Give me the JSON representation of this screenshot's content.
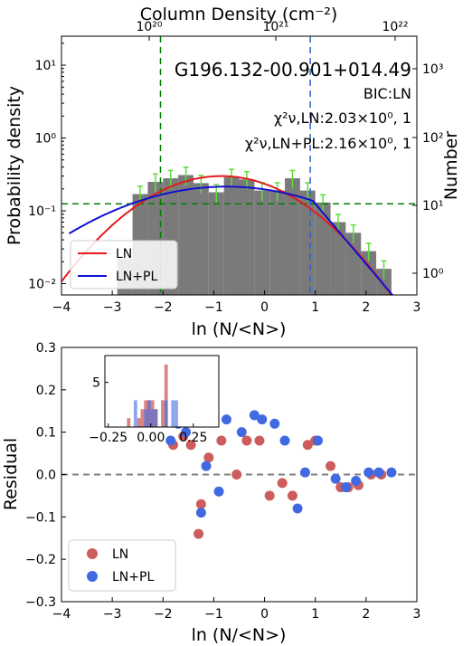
{
  "chart_data": [
    {
      "type": "bar",
      "title": "G196.132-00.901+014.49",
      "annotations": [
        "BIC:LN",
        "χ²ν,LN:2.03×10⁰, 1",
        "χ²ν,LN+PL:2.16×10⁰, 1"
      ],
      "xlabel": "ln (N/<N>)",
      "ylabel": "Probability density",
      "ylabel_right": "Number",
      "xlabel_top": "Column Density (cm⁻²)",
      "xlim": [
        -4,
        3
      ],
      "ylim": [
        0.007,
        25
      ],
      "yscale": "log",
      "x_ticks": [
        "−4",
        "−3",
        "−2",
        "−1",
        "0",
        "1",
        "2",
        "3"
      ],
      "y_ticks": [
        "10⁻²",
        "10⁻¹",
        "10⁰",
        "10¹"
      ],
      "y_right_ticks": [
        "10⁰",
        "10¹",
        "10²",
        "10³"
      ],
      "top_ticks": [
        "10²⁰",
        "10²¹",
        "10²²"
      ],
      "histogram": {
        "color": "#7a7a7a",
        "bins": [
          {
            "x0": -2.9,
            "x1": -2.6,
            "value": 0.022
          },
          {
            "x0": -2.6,
            "x1": -2.3,
            "value": 0.17
          },
          {
            "x0": -2.3,
            "x1": -2.0,
            "value": 0.25
          },
          {
            "x0": -2.0,
            "x1": -1.7,
            "value": 0.28
          },
          {
            "x0": -1.7,
            "x1": -1.4,
            "value": 0.31
          },
          {
            "x0": -1.4,
            "x1": -1.1,
            "value": 0.24
          },
          {
            "x0": -1.1,
            "x1": -0.8,
            "value": 0.18
          },
          {
            "x0": -0.8,
            "x1": -0.5,
            "value": 0.29
          },
          {
            "x0": -0.5,
            "x1": -0.2,
            "value": 0.27
          },
          {
            "x0": -0.2,
            "x1": 0.1,
            "value": 0.19
          },
          {
            "x0": 0.1,
            "x1": 0.4,
            "value": 0.19
          },
          {
            "x0": 0.4,
            "x1": 0.7,
            "value": 0.28
          },
          {
            "x0": 0.7,
            "x1": 1.0,
            "value": 0.19
          },
          {
            "x0": 1.0,
            "x1": 1.3,
            "value": 0.13
          },
          {
            "x0": 1.3,
            "x1": 1.6,
            "value": 0.07
          },
          {
            "x0": 1.6,
            "x1": 1.9,
            "value": 0.05
          },
          {
            "x0": 1.9,
            "x1": 2.2,
            "value": 0.028
          },
          {
            "x0": 2.2,
            "x1": 2.5,
            "value": 0.016
          }
        ]
      },
      "series": [
        {
          "name": "LN",
          "color": "#e41a1c",
          "mu": -0.85,
          "sigma": 1.22,
          "amp": 0.3
        },
        {
          "name": "LN+PL",
          "color": "#1010d0",
          "mu": -0.75,
          "sigma": 1.8,
          "amp": 0.215,
          "pl_start": 0.95,
          "pl_slope": -1.9
        }
      ],
      "hlines": [
        {
          "y": 0.125,
          "color": "#008000",
          "style": "dashed"
        }
      ],
      "vlines": [
        {
          "x": -2.05,
          "color": "#008000",
          "style": "dashed"
        },
        {
          "x": 0.9,
          "color": "#3060d0",
          "style": "dashed"
        }
      ],
      "legend": "lower-left"
    },
    {
      "type": "scatter",
      "xlabel": "ln (N/<N>)",
      "ylabel": "Residual",
      "xlim": [
        -4,
        3
      ],
      "ylim": [
        -0.3,
        0.3
      ],
      "x_ticks": [
        "−4",
        "−3",
        "−2",
        "−1",
        "0",
        "1",
        "2",
        "3"
      ],
      "y_ticks": [
        "−0.3",
        "−0.2",
        "−0.1",
        "0.0",
        "0.1",
        "0.2",
        "0.3"
      ],
      "hline": {
        "y": 0.0,
        "color": "#7f7f7f",
        "style": "dashed"
      },
      "legend": "lower-left",
      "series": [
        {
          "name": "LN",
          "color": "#cd5c5c",
          "points": [
            [
              -1.8,
              0.07
            ],
            [
              -1.6,
              0.09
            ],
            [
              -1.45,
              0.07
            ],
            [
              -1.3,
              -0.14
            ],
            [
              -1.25,
              -0.07
            ],
            [
              -1.1,
              0.04
            ],
            [
              -0.85,
              0.08
            ],
            [
              -0.55,
              0.0
            ],
            [
              -0.35,
              0.08
            ],
            [
              -0.1,
              0.08
            ],
            [
              0.1,
              -0.05
            ],
            [
              0.35,
              -0.02
            ],
            [
              0.55,
              -0.05
            ],
            [
              0.85,
              0.07
            ],
            [
              1.0,
              0.08
            ],
            [
              1.3,
              0.02
            ],
            [
              1.5,
              -0.03
            ],
            [
              1.65,
              -0.03
            ],
            [
              1.85,
              -0.025
            ],
            [
              2.1,
              0.0
            ],
            [
              2.3,
              0.0
            ]
          ]
        },
        {
          "name": "LN+PL",
          "color": "#4169e1",
          "points": [
            [
              -1.85,
              0.08
            ],
            [
              -1.7,
              0.12
            ],
            [
              -1.55,
              0.1
            ],
            [
              -1.25,
              -0.09
            ],
            [
              -1.15,
              0.02
            ],
            [
              -0.9,
              -0.04
            ],
            [
              -0.75,
              0.13
            ],
            [
              -0.45,
              0.1
            ],
            [
              -0.2,
              0.14
            ],
            [
              -0.05,
              0.13
            ],
            [
              0.2,
              0.12
            ],
            [
              0.4,
              0.08
            ],
            [
              0.65,
              -0.08
            ],
            [
              0.8,
              0.005
            ],
            [
              1.05,
              0.08
            ],
            [
              1.4,
              -0.01
            ],
            [
              1.6,
              -0.03
            ],
            [
              1.8,
              -0.015
            ],
            [
              2.05,
              0.005
            ],
            [
              2.25,
              0.005
            ],
            [
              2.5,
              0.005
            ]
          ]
        }
      ],
      "inset": {
        "xlim": [
          -0.27,
          0.4
        ],
        "ylim": [
          0,
          8
        ],
        "x_ticks": [
          "−0.25",
          "0.00",
          "0.25"
        ],
        "y_ticks": [
          "5"
        ],
        "series": [
          {
            "name": "LN",
            "color": "#cd5c5c",
            "bins": [
              [
                -0.14,
                -0.12,
                1
              ],
              [
                -0.08,
                -0.06,
                1
              ],
              [
                -0.06,
                -0.04,
                2
              ],
              [
                -0.04,
                -0.02,
                3
              ],
              [
                -0.02,
                0.0,
                3
              ],
              [
                0.0,
                0.02,
                3
              ],
              [
                0.02,
                0.04,
                2
              ],
              [
                0.06,
                0.08,
                3
              ],
              [
                0.08,
                0.1,
                7
              ]
            ]
          },
          {
            "name": "LN+PL",
            "color": "#4169e1",
            "bins": [
              [
                -0.1,
                -0.08,
                3
              ],
              [
                -0.04,
                -0.02,
                2
              ],
              [
                -0.02,
                0.0,
                3
              ],
              [
                0.0,
                0.02,
                2
              ],
              [
                0.02,
                0.04,
                2
              ],
              [
                0.08,
                0.1,
                3
              ],
              [
                0.12,
                0.14,
                3
              ],
              [
                0.14,
                0.16,
                3
              ]
            ]
          }
        ]
      }
    }
  ]
}
